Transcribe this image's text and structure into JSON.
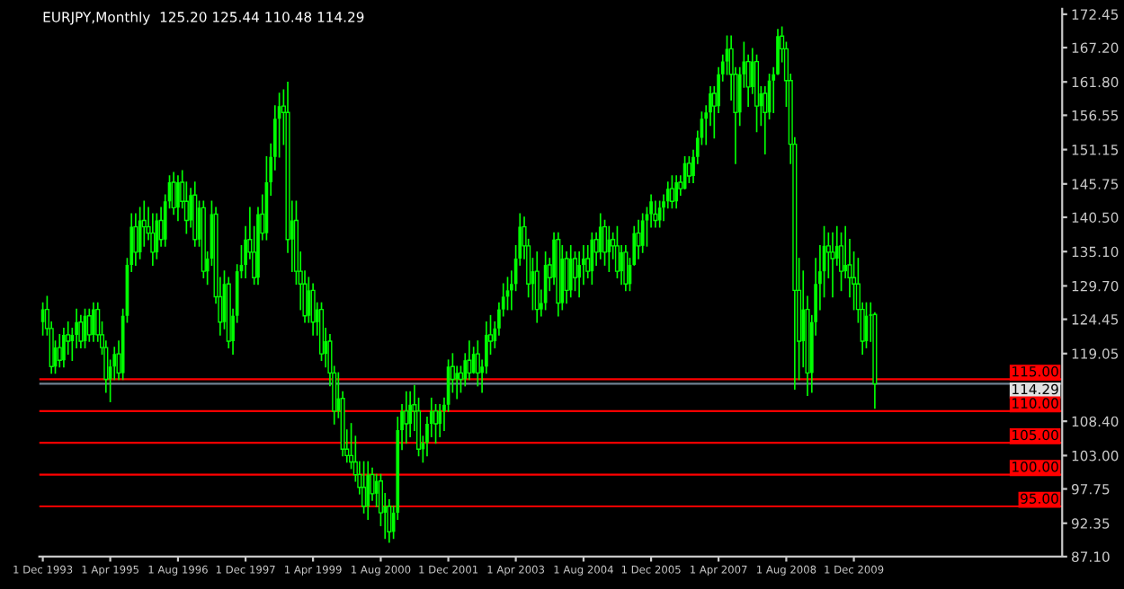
{
  "chart_data": {
    "type": "candlestick",
    "title": "EURJPY,Monthly  125.20 125.44 110.48 114.29",
    "x": [
      "1993-12",
      "1994-01",
      "1994-02",
      "1994-03",
      "1994-04",
      "1994-05",
      "1994-06",
      "1994-07",
      "1994-08",
      "1994-09",
      "1994-10",
      "1994-11",
      "1994-12",
      "1995-01",
      "1995-02",
      "1995-03",
      "1995-04",
      "1995-05",
      "1995-06",
      "1995-07",
      "1995-08",
      "1995-09",
      "1995-10",
      "1995-11",
      "1995-12",
      "1996-01",
      "1996-02",
      "1996-03",
      "1996-04",
      "1996-05",
      "1996-06",
      "1996-07",
      "1996-08",
      "1996-09",
      "1996-10",
      "1996-11",
      "1996-12",
      "1997-01",
      "1997-02",
      "1997-03",
      "1997-04",
      "1997-05",
      "1997-06",
      "1997-07",
      "1997-08",
      "1997-09",
      "1997-10",
      "1997-11",
      "1997-12",
      "1998-01",
      "1998-02",
      "1998-03",
      "1998-04",
      "1998-05",
      "1998-06",
      "1998-07",
      "1998-08",
      "1998-09",
      "1998-10",
      "1998-11",
      "1998-12",
      "1999-01",
      "1999-02",
      "1999-03",
      "1999-04",
      "1999-05",
      "1999-06",
      "1999-07",
      "1999-08",
      "1999-09",
      "1999-10",
      "1999-11",
      "1999-12",
      "2000-01",
      "2000-02",
      "2000-03",
      "2000-04",
      "2000-05",
      "2000-06",
      "2000-07",
      "2000-08",
      "2000-09",
      "2000-10",
      "2000-11",
      "2000-12",
      "2001-01",
      "2001-02",
      "2001-03",
      "2001-04",
      "2001-05",
      "2001-06",
      "2001-07",
      "2001-08",
      "2001-09",
      "2001-10",
      "2001-11",
      "2001-12",
      "2002-01",
      "2002-02",
      "2002-03",
      "2002-04",
      "2002-05",
      "2002-06",
      "2002-07",
      "2002-08",
      "2002-09",
      "2002-10",
      "2002-11",
      "2002-12",
      "2003-01",
      "2003-02",
      "2003-03",
      "2003-04",
      "2003-05",
      "2003-06",
      "2003-07",
      "2003-08",
      "2003-09",
      "2003-10",
      "2003-11",
      "2003-12",
      "2004-01",
      "2004-02",
      "2004-03",
      "2004-04",
      "2004-05",
      "2004-06",
      "2004-07",
      "2004-08",
      "2004-09",
      "2004-10",
      "2004-11",
      "2004-12",
      "2005-01",
      "2005-02",
      "2005-03",
      "2005-04",
      "2005-05",
      "2005-06",
      "2005-07",
      "2005-08",
      "2005-09",
      "2005-10",
      "2005-11",
      "2005-12",
      "2006-01",
      "2006-02",
      "2006-03",
      "2006-04",
      "2006-05",
      "2006-06",
      "2006-07",
      "2006-08",
      "2006-09",
      "2006-10",
      "2006-11",
      "2006-12",
      "2007-01",
      "2007-02",
      "2007-03",
      "2007-04",
      "2007-05",
      "2007-06",
      "2007-07",
      "2007-08",
      "2007-09",
      "2007-10",
      "2007-11",
      "2007-12",
      "2008-01",
      "2008-02",
      "2008-03",
      "2008-04",
      "2008-05",
      "2008-06",
      "2008-07",
      "2008-08",
      "2008-09",
      "2008-10",
      "2008-11",
      "2008-12",
      "2009-01",
      "2009-02",
      "2009-03",
      "2009-04",
      "2009-05",
      "2009-06",
      "2009-07",
      "2009-08",
      "2009-09",
      "2009-10",
      "2009-11",
      "2009-12",
      "2010-01",
      "2010-02",
      "2010-03",
      "2010-04",
      "2010-05"
    ],
    "series": [
      {
        "color": "#00ff00",
        "ohlc": [
          [
            124,
            127,
            122,
            126
          ],
          [
            126,
            128,
            122,
            123
          ],
          [
            123,
            124,
            116,
            117
          ],
          [
            117,
            121,
            116,
            120
          ],
          [
            120,
            122,
            117,
            118
          ],
          [
            118,
            123,
            117,
            122
          ],
          [
            122,
            124,
            119,
            121
          ],
          [
            121,
            123,
            118,
            122
          ],
          [
            122,
            126,
            120,
            124
          ],
          [
            124,
            125,
            120,
            121
          ],
          [
            121,
            126,
            120,
            125
          ],
          [
            125,
            126,
            121,
            122
          ],
          [
            122,
            127,
            121,
            126
          ],
          [
            126,
            127,
            121,
            122
          ],
          [
            122,
            124,
            119,
            120
          ],
          [
            120,
            121,
            113,
            115
          ],
          [
            115,
            118,
            111.5,
            117
          ],
          [
            117,
            120,
            115,
            119
          ],
          [
            119,
            121,
            115,
            116
          ],
          [
            116,
            126,
            115,
            125
          ],
          [
            125,
            134,
            124,
            133
          ],
          [
            133,
            141,
            132,
            139
          ],
          [
            139,
            141,
            133,
            135
          ],
          [
            135,
            142,
            134,
            140
          ],
          [
            140,
            143,
            136,
            139
          ],
          [
            139,
            142,
            137,
            138
          ],
          [
            138,
            141,
            133,
            135
          ],
          [
            135,
            141,
            134,
            140
          ],
          [
            140,
            142,
            136,
            137
          ],
          [
            137,
            144,
            136,
            143
          ],
          [
            143,
            147,
            142,
            146
          ],
          [
            146,
            147.5,
            141,
            142
          ],
          [
            142,
            147,
            140,
            146
          ],
          [
            146,
            147.8,
            142,
            143
          ],
          [
            143,
            146,
            138,
            140
          ],
          [
            140,
            145,
            139,
            144
          ],
          [
            144,
            146,
            136,
            137
          ],
          [
            137,
            143,
            136,
            142
          ],
          [
            142,
            143,
            131,
            132
          ],
          [
            132,
            135,
            130,
            134
          ],
          [
            134,
            143,
            133,
            141
          ],
          [
            141,
            142,
            127,
            128
          ],
          [
            128,
            131,
            122,
            124
          ],
          [
            124,
            132,
            123,
            130
          ],
          [
            130,
            131,
            120,
            121
          ],
          [
            121,
            126,
            119,
            125
          ],
          [
            125,
            133,
            124,
            132
          ],
          [
            132,
            136,
            131,
            133
          ],
          [
            133,
            139,
            131,
            137
          ],
          [
            137,
            142,
            134,
            135
          ],
          [
            135,
            139,
            130,
            131
          ],
          [
            131,
            142,
            130,
            141
          ],
          [
            141,
            144,
            137,
            138
          ],
          [
            138,
            150,
            137,
            146
          ],
          [
            146,
            152,
            144,
            150
          ],
          [
            150,
            158,
            148,
            156
          ],
          [
            156,
            160,
            150,
            158
          ],
          [
            158,
            160.5,
            152,
            157
          ],
          [
            157,
            161.7,
            135,
            137
          ],
          [
            137,
            143,
            132,
            140
          ],
          [
            140,
            143,
            130,
            132
          ],
          [
            132,
            135,
            126,
            130
          ],
          [
            130,
            132,
            124,
            125
          ],
          [
            125,
            131,
            124,
            129
          ],
          [
            129,
            130,
            122,
            124
          ],
          [
            124,
            127,
            122,
            126
          ],
          [
            126,
            127,
            118,
            119
          ],
          [
            119,
            123,
            117,
            121
          ],
          [
            121,
            122,
            114,
            116
          ],
          [
            116,
            117,
            108,
            110
          ],
          [
            110,
            116,
            109,
            112
          ],
          [
            112,
            113,
            103,
            104
          ],
          [
            104,
            107,
            102,
            103
          ],
          [
            103,
            108,
            101,
            102
          ],
          [
            102,
            106,
            99,
            100
          ],
          [
            100,
            102,
            97,
            98
          ],
          [
            98,
            102,
            94,
            95
          ],
          [
            95,
            102,
            93,
            100
          ],
          [
            100,
            101,
            96,
            97
          ],
          [
            97,
            100,
            95,
            99
          ],
          [
            99,
            100,
            92,
            94
          ],
          [
            94,
            97,
            90,
            95
          ],
          [
            95,
            96,
            89.4,
            91
          ],
          [
            91,
            95,
            90,
            94
          ],
          [
            94,
            109,
            93,
            107
          ],
          [
            107,
            111,
            104,
            110
          ],
          [
            110,
            113,
            105,
            108
          ],
          [
            108,
            113,
            106,
            111
          ],
          [
            111,
            114,
            107,
            110
          ],
          [
            110,
            112,
            103,
            104
          ],
          [
            104,
            106,
            102,
            105
          ],
          [
            105,
            109,
            103,
            108
          ],
          [
            108,
            112,
            106,
            110
          ],
          [
            110,
            111,
            105,
            108
          ],
          [
            108,
            111,
            106,
            110
          ],
          [
            110,
            112,
            107,
            111
          ],
          [
            111,
            118,
            110,
            117
          ],
          [
            117,
            119,
            113,
            115
          ],
          [
            115,
            117,
            112,
            116
          ],
          [
            116,
            117,
            113,
            115
          ],
          [
            115,
            119,
            114,
            118
          ],
          [
            118,
            121,
            115,
            116
          ],
          [
            116,
            120,
            116,
            119
          ],
          [
            119,
            121,
            114,
            116
          ],
          [
            116,
            118,
            113,
            117
          ],
          [
            117,
            124,
            116,
            122
          ],
          [
            122,
            125,
            119,
            121
          ],
          [
            121,
            124,
            120,
            123
          ],
          [
            123,
            127,
            122,
            126
          ],
          [
            126,
            130,
            125,
            128
          ],
          [
            128,
            131,
            126,
            129
          ],
          [
            129,
            132,
            126,
            130
          ],
          [
            130,
            136,
            129,
            134
          ],
          [
            134,
            141,
            133,
            139
          ],
          [
            139,
            140.5,
            134,
            136
          ],
          [
            136,
            137,
            128,
            130
          ],
          [
            130,
            134,
            126,
            132
          ],
          [
            132,
            135,
            124,
            126
          ],
          [
            126,
            129,
            125,
            127
          ],
          [
            127,
            135,
            126,
            133
          ],
          [
            133,
            134,
            129,
            131
          ],
          [
            131,
            138,
            130,
            137
          ],
          [
            137,
            138,
            125,
            127
          ],
          [
            127,
            136,
            126,
            134
          ],
          [
            134,
            135,
            127,
            129
          ],
          [
            129,
            136,
            128,
            134
          ],
          [
            134,
            135,
            129,
            131
          ],
          [
            131,
            135,
            128,
            133
          ],
          [
            133,
            136,
            130,
            134
          ],
          [
            134,
            136,
            131,
            132
          ],
          [
            132,
            138,
            130,
            137
          ],
          [
            137,
            138,
            133,
            135
          ],
          [
            135,
            141,
            134,
            139
          ],
          [
            139,
            140,
            133,
            135
          ],
          [
            135,
            139,
            132,
            137
          ],
          [
            137,
            138,
            134,
            136
          ],
          [
            136,
            139,
            131,
            132
          ],
          [
            132,
            136,
            130,
            135
          ],
          [
            135,
            136,
            129,
            130
          ],
          [
            130,
            134,
            129,
            133
          ],
          [
            133,
            139,
            133,
            138
          ],
          [
            138,
            140,
            134,
            136
          ],
          [
            136,
            141,
            135,
            140
          ],
          [
            140,
            142,
            136,
            141
          ],
          [
            141,
            144,
            139,
            143
          ],
          [
            141,
            143,
            139,
            140
          ],
          [
            140,
            143,
            139,
            142
          ],
          [
            142,
            144,
            140,
            143
          ],
          [
            143,
            146,
            142,
            145
          ],
          [
            145,
            147,
            142,
            143
          ],
          [
            143,
            147,
            142,
            146
          ],
          [
            146,
            147,
            144,
            145
          ],
          [
            145,
            150,
            145,
            149
          ],
          [
            149,
            150,
            146,
            147
          ],
          [
            147,
            151,
            146,
            150
          ],
          [
            150,
            154,
            149,
            153
          ],
          [
            153,
            157,
            152,
            156
          ],
          [
            156,
            158,
            152,
            157
          ],
          [
            157,
            161,
            155,
            160
          ],
          [
            160,
            161,
            153,
            158
          ],
          [
            158,
            164,
            157,
            163
          ],
          [
            163,
            166,
            162,
            165
          ],
          [
            165,
            169,
            163,
            167
          ],
          [
            167,
            169,
            159,
            163
          ],
          [
            163,
            164,
            149,
            157
          ],
          [
            157,
            164,
            155,
            163
          ],
          [
            163,
            168,
            161,
            165
          ],
          [
            165,
            166,
            158,
            161
          ],
          [
            161,
            167,
            160,
            165
          ],
          [
            165,
            166,
            154,
            158
          ],
          [
            158,
            161,
            155,
            160
          ],
          [
            160,
            161,
            150.5,
            157
          ],
          [
            157,
            163,
            156,
            162
          ],
          [
            162,
            164,
            157,
            163
          ],
          [
            163,
            170,
            163,
            169
          ],
          [
            169,
            170.4,
            165,
            167
          ],
          [
            167,
            168,
            158,
            162
          ],
          [
            162,
            163,
            149,
            152
          ],
          [
            152,
            153,
            113.5,
            129
          ],
          [
            129,
            134,
            115,
            121
          ],
          [
            121,
            132,
            117,
            126
          ],
          [
            126,
            128,
            112.5,
            116
          ],
          [
            116,
            125,
            113,
            124
          ],
          [
            124,
            134,
            122,
            130
          ],
          [
            130,
            136,
            126,
            132
          ],
          [
            132,
            139,
            128,
            136
          ],
          [
            136,
            138,
            131,
            135
          ],
          [
            135,
            138,
            128,
            134
          ],
          [
            134,
            139,
            133,
            136
          ],
          [
            136,
            138,
            129,
            132
          ],
          [
            132,
            139,
            131,
            133
          ],
          [
            133,
            137,
            128,
            131
          ],
          [
            131,
            135,
            126,
            130
          ],
          [
            130,
            134,
            124,
            126
          ],
          [
            126,
            127,
            119,
            121
          ],
          [
            121,
            127,
            120,
            125
          ],
          [
            125,
            127,
            121,
            125.2
          ],
          [
            125.2,
            125.44,
            110.48,
            114.29
          ]
        ]
      }
    ],
    "xlim": [
      "1993-11-06",
      "2014-01-10"
    ],
    "ylim": [
      87.1,
      173.3
    ],
    "xticks": [
      {
        "value": "1993-12-01",
        "label": "1 Dec 1993"
      },
      {
        "value": "1995-04-01",
        "label": "1 Apr 1995"
      },
      {
        "value": "1996-08-01",
        "label": "1 Aug 1996"
      },
      {
        "value": "1997-12-01",
        "label": "1 Dec 1997"
      },
      {
        "value": "1999-04-01",
        "label": "1 Apr 1999"
      },
      {
        "value": "2000-08-01",
        "label": "1 Aug 2000"
      },
      {
        "value": "2001-12-01",
        "label": "1 Dec 2001"
      },
      {
        "value": "2003-04-01",
        "label": "1 Apr 2003"
      },
      {
        "value": "2004-08-01",
        "label": "1 Aug 2004"
      },
      {
        "value": "2005-12-01",
        "label": "1 Dec 2005"
      },
      {
        "value": "2007-04-01",
        "label": "1 Apr 2007"
      },
      {
        "value": "2008-08-01",
        "label": "1 Aug 2008"
      },
      {
        "value": "2009-12-01",
        "label": "1 Dec 2009"
      }
    ],
    "yticks": [
      {
        "value": 172.45,
        "label": "172.45"
      },
      {
        "value": 167.2,
        "label": "167.20"
      },
      {
        "value": 161.8,
        "label": "161.80"
      },
      {
        "value": 156.55,
        "label": "156.55"
      },
      {
        "value": 151.15,
        "label": "151.15"
      },
      {
        "value": 145.75,
        "label": "145.75"
      },
      {
        "value": 140.5,
        "label": "140.50"
      },
      {
        "value": 135.1,
        "label": "135.10"
      },
      {
        "value": 129.7,
        "label": "129.70"
      },
      {
        "value": 124.45,
        "label": "124.45"
      },
      {
        "value": 119.05,
        "label": "119.05"
      },
      {
        "value": 108.4,
        "label": "108.40"
      },
      {
        "value": 103.0,
        "label": "103.00"
      },
      {
        "value": 97.75,
        "label": "97.75"
      },
      {
        "value": 92.35,
        "label": "92.35"
      },
      {
        "value": 87.1,
        "label": "87.10"
      }
    ],
    "ref_lines": [
      {
        "axis": "y",
        "value": 115,
        "label": "115.00",
        "color": "#ff0000"
      },
      {
        "axis": "y",
        "value": 114.29,
        "label": "114.29",
        "color": "#708090"
      },
      {
        "axis": "y",
        "value": 110,
        "label": "110.00",
        "color": "#ff0000"
      },
      {
        "axis": "y",
        "value": 105,
        "label": "105.00",
        "color": "#ff0000"
      },
      {
        "axis": "y",
        "value": 100,
        "label": "100.00",
        "color": "#ff0000"
      },
      {
        "axis": "y",
        "value": 95,
        "label": "95.00",
        "color": "#ff0000"
      }
    ]
  }
}
